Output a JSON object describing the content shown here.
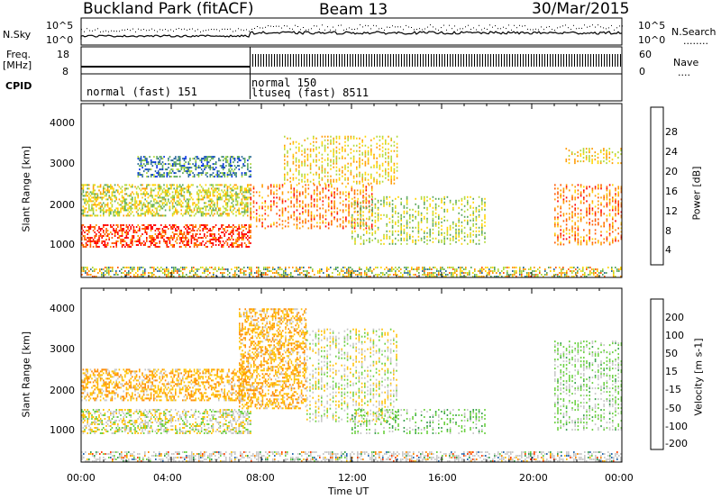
{
  "header": {
    "station": "Buckland Park (fitACF)",
    "beam": "Beam 13",
    "date": "30/Mar/2015"
  },
  "side_labels": {
    "nsky": "N.Sky",
    "freq_line1": "Freq.",
    "freq_line2": "[MHz]",
    "cpid": "CPID",
    "nsearch": "N.Search",
    "nsearch_dots": "........",
    "nave": "Nave",
    "nave_dots": "...."
  },
  "top_panels": {
    "noise_ticks": [
      "10^5",
      "10^0"
    ],
    "noise_right_ticks": [
      "10^5",
      "10^0"
    ],
    "freq_ticks": [
      "18",
      "8"
    ],
    "nave_ticks": [
      "60",
      "0"
    ],
    "cpid_1": "normal (fast) 151",
    "cpid_2": "normal 150",
    "cpid_3": "ltuseq (fast) 8511"
  },
  "axes": {
    "ylabel": "Slant Range [km]",
    "xlabel": "Time UT",
    "y_ticks": [
      "4000",
      "3000",
      "2000",
      "1000"
    ],
    "x_ticks": [
      "00:00",
      "04:00",
      "08:00",
      "12:00",
      "16:00",
      "20:00",
      "00:00"
    ]
  },
  "power_scale": {
    "label": "Power [dB]",
    "ticks": [
      "28",
      "24",
      "20",
      "16",
      "12",
      "8",
      "4"
    ],
    "colors": [
      "#ff0000",
      "#ff5a00",
      "#ff9a00",
      "#ffd400",
      "#b0d838",
      "#5aa85a",
      "#2a6a9a",
      "#0030e0"
    ]
  },
  "velocity_scale": {
    "label": "Velocity [m s-1]",
    "ticks": [
      "200",
      "100",
      "50",
      "15",
      "-15",
      "-50",
      "-100",
      "-200"
    ],
    "colors": [
      "#1020c8",
      "#2a6ab0",
      "#3aa050",
      "#6ad040",
      "#c8c8c8",
      "#ffc000",
      "#ff8a00",
      "#ff4000",
      "#ff0000"
    ]
  },
  "chart_data": [
    {
      "type": "heatmap",
      "name": "power",
      "xlabel": "Time UT",
      "ylabel": "Slant Range [km]",
      "colorbar_label": "Power [dB]",
      "x_range_hours": [
        0,
        24
      ],
      "y_range_km": [
        180,
        4500
      ],
      "features": [
        {
          "t": [
            0,
            7.5
          ],
          "range_km": [
            950,
            1500
          ],
          "power_db": 28
        },
        {
          "t": [
            0,
            7.5
          ],
          "range_km": [
            1700,
            2500
          ],
          "power_db": 16
        },
        {
          "t": [
            2.5,
            7.5
          ],
          "range_km": [
            2700,
            3200
          ],
          "power_db": 8
        },
        {
          "t": [
            7.5,
            13
          ],
          "range_km": [
            1400,
            2500
          ],
          "power_db": 24
        },
        {
          "t": [
            9,
            14
          ],
          "range_km": [
            2500,
            3700
          ],
          "power_db": 18
        },
        {
          "t": [
            12,
            18
          ],
          "range_km": [
            1000,
            2200
          ],
          "power_db": 14
        },
        {
          "t": [
            21,
            24
          ],
          "range_km": [
            1000,
            2500
          ],
          "power_db": 24
        },
        {
          "t": [
            21.5,
            24
          ],
          "range_km": [
            3000,
            3400
          ],
          "power_db": 18
        }
      ]
    },
    {
      "type": "heatmap",
      "name": "velocity",
      "xlabel": "Time UT",
      "ylabel": "Slant Range [km]",
      "colorbar_label": "Velocity [m s-1]",
      "x_range_hours": [
        0,
        24
      ],
      "y_range_km": [
        180,
        4500
      ],
      "features": [
        {
          "t": [
            0,
            7.5
          ],
          "range_km": [
            900,
            1500
          ],
          "velocity": 0
        },
        {
          "t": [
            0,
            7.5
          ],
          "range_km": [
            1700,
            2500
          ],
          "velocity": -40
        },
        {
          "t": [
            7,
            10
          ],
          "range_km": [
            1500,
            4000
          ],
          "velocity": -40
        },
        {
          "t": [
            10,
            14
          ],
          "range_km": [
            1200,
            3500
          ],
          "velocity": 0
        },
        {
          "t": [
            12,
            18
          ],
          "range_km": [
            900,
            1500
          ],
          "velocity": 30
        },
        {
          "t": [
            21,
            24
          ],
          "range_km": [
            1000,
            3200
          ],
          "velocity": 20
        }
      ]
    }
  ]
}
